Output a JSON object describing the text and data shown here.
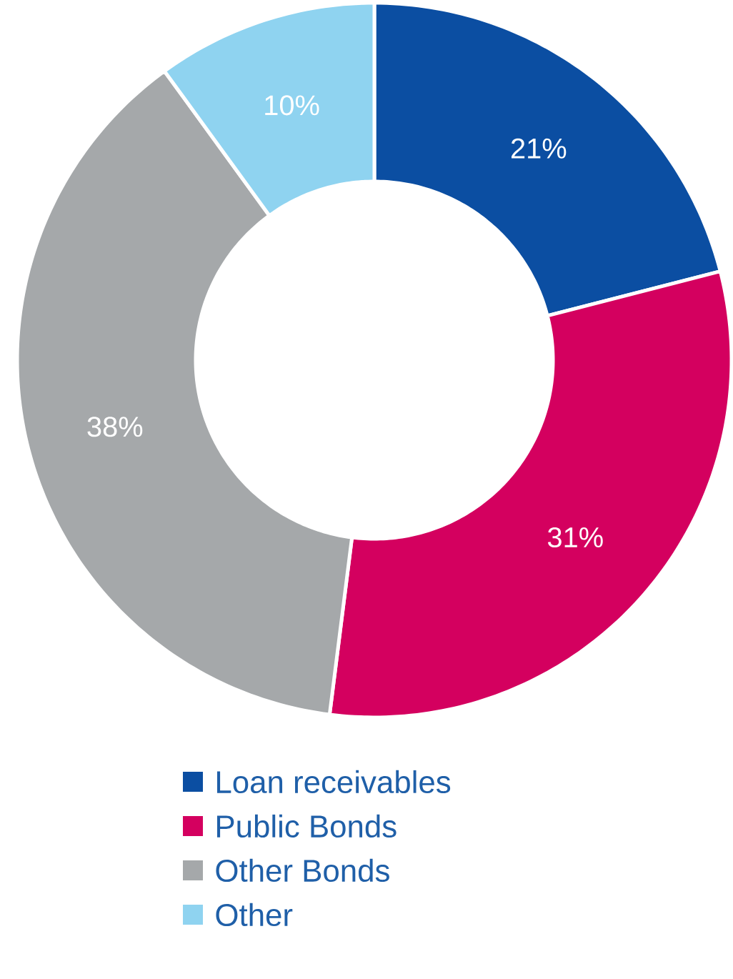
{
  "chart_data": {
    "type": "donut",
    "categories": [
      "Loan receivables",
      "Public Bonds",
      "Other Bonds",
      "Other"
    ],
    "values": [
      21,
      31,
      38,
      10
    ],
    "colors": [
      "#0b4ea2",
      "#d4005f",
      "#a5a8aa",
      "#8fd3f0"
    ],
    "value_labels": [
      "21%",
      "31%",
      "38%",
      "10%"
    ],
    "legend": "bottom"
  }
}
